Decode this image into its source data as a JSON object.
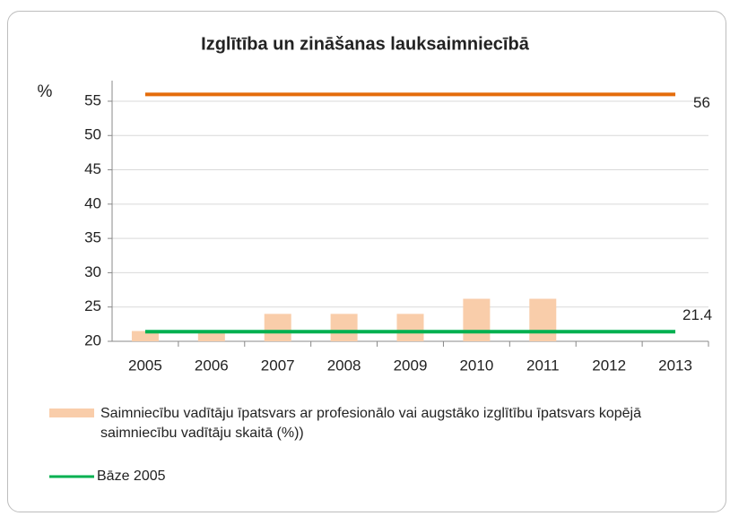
{
  "chart_data": {
    "type": "bar",
    "title": "Izglītība un zināšanas lauksaimniecībā",
    "y_label": "%",
    "categories": [
      "2005",
      "2006",
      "2007",
      "2008",
      "2009",
      "2010",
      "2011",
      "2012",
      "2013"
    ],
    "series": [
      {
        "name": "Saimniecību vadītāju īpatsvars ar profesionālo vai augstāko izglītību īpatsvars kopējā saimniecību vadītāju skaitā (%))",
        "type": "bar",
        "color": "#f9cdaa",
        "values": [
          21.5,
          21.4,
          24,
          24,
          24,
          26.2,
          26.2,
          null,
          null
        ]
      },
      {
        "type": "line",
        "color": "#e46c0a",
        "values": [
          56,
          56,
          56,
          56,
          56,
          56,
          56,
          56,
          56
        ]
      },
      {
        "name": "Bāze 2005",
        "type": "line",
        "color": "#00b050",
        "values": [
          21.4,
          21.4,
          21.4,
          21.4,
          21.4,
          21.4,
          21.4,
          21.4,
          21.4
        ]
      }
    ],
    "ylim": [
      20,
      58
    ],
    "yticks": [
      20,
      25,
      30,
      35,
      40,
      45,
      50,
      55
    ],
    "grid": true
  }
}
